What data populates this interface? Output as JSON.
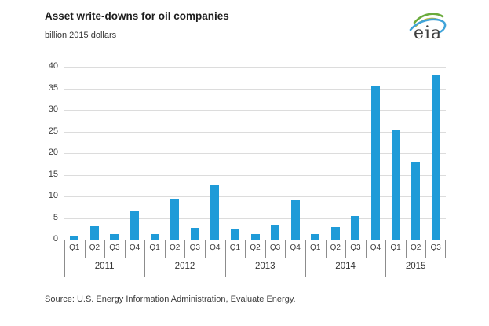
{
  "header": {
    "title": "Asset write-downs for oil companies",
    "subtitle": "billion 2015 dollars"
  },
  "logo": {
    "text": "eia",
    "swoosh_colors": [
      "#6aab3c",
      "#c0b835",
      "#3fa3d9"
    ]
  },
  "footer": {
    "source": "Source:  U.S. Energy Information Administration, Evaluate Energy."
  },
  "colors": {
    "bar": "#1f9bd8",
    "gridline": "#dcdcdc",
    "axis_line": "#2b2b2b",
    "tick_separator": "#8c8c8c",
    "text": "#3c3c3c"
  },
  "chart_data": {
    "type": "bar",
    "title": "Asset write-downs for oil companies",
    "ylabel": "billion 2015 dollars",
    "xlabel": "",
    "ylim": [
      0,
      40
    ],
    "yticks": [
      0,
      5,
      10,
      15,
      20,
      25,
      30,
      35,
      40
    ],
    "grid": true,
    "legend": "none",
    "groups": [
      {
        "year": "2011",
        "quarters": [
          "Q1",
          "Q2",
          "Q3",
          "Q4"
        ],
        "values": [
          0.7,
          3.1,
          1.2,
          6.8
        ]
      },
      {
        "year": "2012",
        "quarters": [
          "Q1",
          "Q2",
          "Q3",
          "Q4"
        ],
        "values": [
          1.2,
          9.4,
          2.7,
          12.6
        ]
      },
      {
        "year": "2013",
        "quarters": [
          "Q1",
          "Q2",
          "Q3",
          "Q4"
        ],
        "values": [
          2.4,
          1.2,
          3.4,
          9.1
        ]
      },
      {
        "year": "2014",
        "quarters": [
          "Q1",
          "Q2",
          "Q3",
          "Q4"
        ],
        "values": [
          1.2,
          2.9,
          5.5,
          35.7
        ]
      },
      {
        "year": "2015",
        "quarters": [
          "Q1",
          "Q2",
          "Q3"
        ],
        "values": [
          25.2,
          18.0,
          38.2
        ]
      }
    ]
  }
}
